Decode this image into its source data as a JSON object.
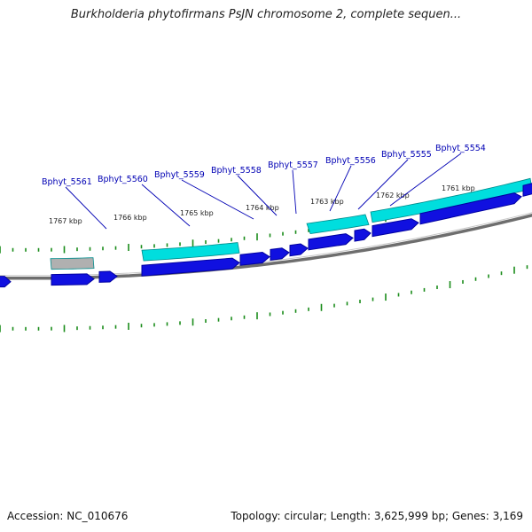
{
  "title": "Burkholderia phytofirmans PsJN chromosome 2, complete sequen...",
  "footer": {
    "accession": "Accession: NC_010676",
    "topology": "Topology: circular; Length: 3,625,999 bp; Genes: 3,169"
  },
  "colors": {
    "gene_blue": "#1010e0",
    "gene_blue_dark": "#0000a0",
    "cyan_band": "#00dede",
    "grey_band": "#b0b0b0",
    "tick_green": "#1a8c1a",
    "label_blue": "#0000b4",
    "backbone_grey": "#808080"
  },
  "kbp_ticks": [
    {
      "kbp": 1767,
      "label": "1767 kbp"
    },
    {
      "kbp": 1766,
      "label": "1766 kbp"
    },
    {
      "kbp": 1765,
      "label": "1765 kbp"
    },
    {
      "kbp": 1764,
      "label": "1764 kbp"
    },
    {
      "kbp": 1763,
      "label": "1763 kbp"
    },
    {
      "kbp": 1762,
      "label": "1762 kbp"
    },
    {
      "kbp": 1761,
      "label": "1761 kbp"
    }
  ],
  "gene_labels": [
    {
      "id": "Bphyt_5561"
    },
    {
      "id": "Bphyt_5560"
    },
    {
      "id": "Bphyt_5559"
    },
    {
      "id": "Bphyt_5558"
    },
    {
      "id": "Bphyt_5557"
    },
    {
      "id": "Bphyt_5556"
    },
    {
      "id": "Bphyt_5555"
    },
    {
      "id": "Bphyt_5554"
    }
  ]
}
